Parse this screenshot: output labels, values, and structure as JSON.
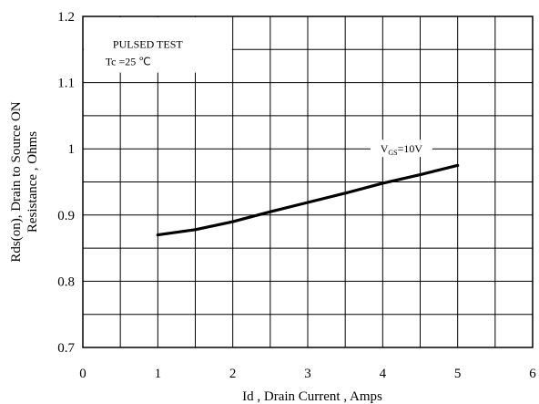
{
  "chart_data": {
    "type": "line",
    "xlabel": "Id , Drain Current , Amps",
    "ylabel_line1": "Rds(on), Drain to Source ON",
    "ylabel_line2": "Resistance , Ohms",
    "xlim": [
      0,
      6
    ],
    "ylim": [
      0.7,
      1.2
    ],
    "x_ticks": [
      "0",
      "1",
      "2",
      "3",
      "4",
      "5",
      "6"
    ],
    "y_ticks": [
      "0.7",
      "0.8",
      "0.9",
      "1",
      "1.1",
      "1.2"
    ],
    "x_minor_step": 0.5,
    "y_minor_step": 0.05,
    "grid": true,
    "annotation": {
      "line1": "PULSED TEST",
      "line2": "Tc =25 ℃"
    },
    "series": [
      {
        "label_main": "V",
        "label_sub": "GS",
        "label_tail": "=10V",
        "label_at": [
          4.25,
          1.0
        ],
        "x": [
          1.0,
          1.5,
          2.0,
          2.5,
          3.0,
          3.5,
          4.0,
          4.5,
          5.0
        ],
        "y": [
          0.87,
          0.878,
          0.89,
          0.905,
          0.919,
          0.933,
          0.948,
          0.961,
          0.975
        ]
      }
    ]
  }
}
